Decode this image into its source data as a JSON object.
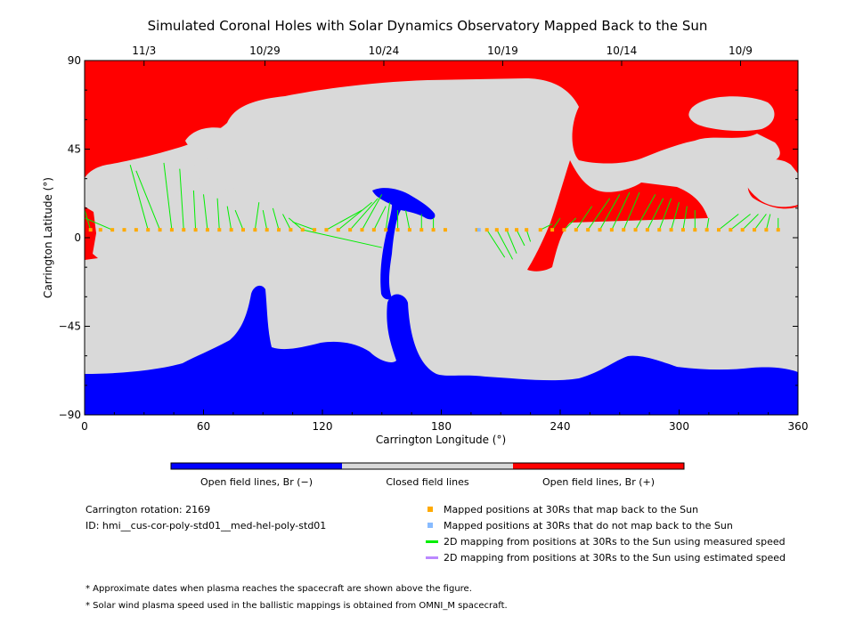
{
  "chart_data": {
    "type": "heatmap",
    "title": "Simulated Coronal Holes with Solar Dynamics Observatory Mapped Back to the Sun",
    "xlabel": "Carrington Longitude (°)",
    "ylabel": "Carrington Latitude (°)",
    "xlim": [
      0,
      360
    ],
    "ylim": [
      -90,
      90
    ],
    "x_ticks": [
      0,
      60,
      120,
      180,
      240,
      300,
      360
    ],
    "y_ticks": [
      -90,
      -45,
      0,
      45,
      90
    ],
    "y_tick_labels": [
      "−90",
      "−45",
      "0",
      "45",
      "90"
    ],
    "date_axis": [
      {
        "label": "11/3",
        "lon": 30
      },
      {
        "label": "10/29",
        "lon": 91
      },
      {
        "label": "10/24",
        "lon": 151
      },
      {
        "label": "10/19",
        "lon": 211
      },
      {
        "label": "10/14",
        "lon": 271
      },
      {
        "label": "10/9",
        "lon": 331
      }
    ],
    "colors": {
      "open_negative": "#0000ff",
      "closed": "#d9d9d9",
      "open_positive": "#ff0000",
      "mapped": "#ffaa00",
      "not_mapped": "#88bbff",
      "measured_line": "#00ee00",
      "estimated_line": "#bb88ff"
    },
    "colorbar_labels": [
      "Open field lines, Br (−)",
      "Closed field lines",
      "Open field lines, Br (+)"
    ],
    "mapped_positions": [
      [
        3,
        4
      ],
      [
        8,
        4
      ],
      [
        14,
        4
      ],
      [
        20,
        4
      ],
      [
        26,
        4
      ],
      [
        32,
        4
      ],
      [
        38,
        4
      ],
      [
        44,
        4
      ],
      [
        50,
        4
      ],
      [
        56,
        4
      ],
      [
        62,
        4
      ],
      [
        68,
        4
      ],
      [
        74,
        4
      ],
      [
        80,
        4
      ],
      [
        86,
        4
      ],
      [
        92,
        4
      ],
      [
        98,
        4
      ],
      [
        104,
        4
      ],
      [
        110,
        4
      ],
      [
        116,
        4
      ],
      [
        122,
        4
      ],
      [
        128,
        4
      ],
      [
        134,
        4
      ],
      [
        140,
        4
      ],
      [
        146,
        4
      ],
      [
        152,
        4
      ],
      [
        158,
        4
      ],
      [
        164,
        4
      ],
      [
        170,
        4
      ],
      [
        176,
        4
      ],
      [
        182,
        4
      ],
      [
        198,
        4
      ],
      [
        203,
        4
      ],
      [
        208,
        4
      ],
      [
        213,
        4
      ],
      [
        218,
        4
      ],
      [
        223,
        4
      ],
      [
        230,
        4
      ],
      [
        236,
        4
      ],
      [
        242,
        4
      ],
      [
        248,
        4
      ],
      [
        254,
        4
      ],
      [
        260,
        4
      ],
      [
        266,
        4
      ],
      [
        272,
        4
      ],
      [
        278,
        4
      ],
      [
        284,
        4
      ],
      [
        290,
        4
      ],
      [
        296,
        4
      ],
      [
        302,
        4
      ],
      [
        308,
        4
      ],
      [
        314,
        4
      ],
      [
        320,
        4
      ],
      [
        326,
        4
      ],
      [
        332,
        4
      ],
      [
        338,
        4
      ],
      [
        344,
        4
      ],
      [
        350,
        4
      ]
    ],
    "not_mapped_positions": [
      [
        199,
        4
      ]
    ],
    "mapping_lines": [
      [
        [
          0,
          14
        ],
        [
          3,
          4
        ]
      ],
      [
        [
          0,
          10
        ],
        [
          14,
          4
        ]
      ],
      [
        [
          23,
          37
        ],
        [
          32,
          4
        ]
      ],
      [
        [
          26,
          34
        ],
        [
          38,
          4
        ]
      ],
      [
        [
          40,
          38
        ],
        [
          44,
          4
        ]
      ],
      [
        [
          48,
          35
        ],
        [
          50,
          4
        ]
      ],
      [
        [
          55,
          24
        ],
        [
          56,
          4
        ]
      ],
      [
        [
          60,
          22
        ],
        [
          62,
          4
        ]
      ],
      [
        [
          67,
          20
        ],
        [
          68,
          4
        ]
      ],
      [
        [
          72,
          16
        ],
        [
          74,
          4
        ]
      ],
      [
        [
          76,
          14
        ],
        [
          80,
          4
        ]
      ],
      [
        [
          88,
          18
        ],
        [
          86,
          4
        ]
      ],
      [
        [
          90,
          14
        ],
        [
          92,
          4
        ]
      ],
      [
        [
          95,
          15
        ],
        [
          98,
          4
        ]
      ],
      [
        [
          100,
          12
        ],
        [
          104,
          4
        ]
      ],
      [
        [
          103,
          10
        ],
        [
          110,
          4
        ]
      ],
      [
        [
          105,
          8
        ],
        [
          116,
          4
        ]
      ],
      [
        [
          110,
          4
        ],
        [
          150,
          -5
        ]
      ],
      [
        [
          140,
          14
        ],
        [
          122,
          4
        ]
      ],
      [
        [
          145,
          18
        ],
        [
          128,
          4
        ]
      ],
      [
        [
          148,
          20
        ],
        [
          134,
          4
        ]
      ],
      [
        [
          150,
          22
        ],
        [
          140,
          4
        ]
      ],
      [
        [
          152,
          16
        ],
        [
          146,
          4
        ]
      ],
      [
        [
          154,
          18
        ],
        [
          152,
          4
        ]
      ],
      [
        [
          158,
          14
        ],
        [
          158,
          4
        ]
      ],
      [
        [
          162,
          14
        ],
        [
          164,
          4
        ]
      ],
      [
        [
          170,
          12
        ],
        [
          170,
          4
        ]
      ],
      [
        [
          176,
          10
        ],
        [
          176,
          4
        ]
      ],
      [
        [
          212,
          -10
        ],
        [
          203,
          4
        ]
      ],
      [
        [
          216,
          -11
        ],
        [
          208,
          4
        ]
      ],
      [
        [
          218,
          -8
        ],
        [
          213,
          4
        ]
      ],
      [
        [
          222,
          -4
        ],
        [
          218,
          4
        ]
      ],
      [
        [
          225,
          -2
        ],
        [
          223,
          4
        ]
      ],
      [
        [
          236,
          7
        ],
        [
          230,
          4
        ]
      ],
      [
        [
          240,
          10
        ],
        [
          236,
          4
        ]
      ],
      [
        [
          248,
          10
        ],
        [
          242,
          4
        ]
      ],
      [
        [
          256,
          16
        ],
        [
          248,
          4
        ]
      ],
      [
        [
          265,
          20
        ],
        [
          254,
          4
        ]
      ],
      [
        [
          270,
          22
        ],
        [
          260,
          4
        ]
      ],
      [
        [
          275,
          23
        ],
        [
          266,
          4
        ]
      ],
      [
        [
          280,
          23
        ],
        [
          272,
          4
        ]
      ],
      [
        [
          288,
          22
        ],
        [
          278,
          4
        ]
      ],
      [
        [
          292,
          20
        ],
        [
          284,
          4
        ]
      ],
      [
        [
          296,
          20
        ],
        [
          290,
          4
        ]
      ],
      [
        [
          300,
          18
        ],
        [
          296,
          4
        ]
      ],
      [
        [
          304,
          16
        ],
        [
          302,
          4
        ]
      ],
      [
        [
          308,
          14
        ],
        [
          308,
          4
        ]
      ],
      [
        [
          315,
          10
        ],
        [
          314,
          4
        ]
      ],
      [
        [
          330,
          12
        ],
        [
          320,
          4
        ]
      ],
      [
        [
          336,
          12
        ],
        [
          326,
          4
        ]
      ],
      [
        [
          340,
          12
        ],
        [
          332,
          4
        ]
      ],
      [
        [
          344,
          12
        ],
        [
          338,
          4
        ]
      ],
      [
        [
          346,
          12
        ],
        [
          344,
          4
        ]
      ],
      [
        [
          350,
          10
        ],
        [
          350,
          4
        ]
      ]
    ]
  },
  "info": {
    "rotation": "Carrington rotation: 2169",
    "id": "ID: hmi__cus-cor-poly-std01__med-hel-poly-std01"
  },
  "legend": [
    {
      "text": "Mapped positions at 30Rs that map back to the Sun",
      "kind": "square",
      "color": "#ffaa00"
    },
    {
      "text": "Mapped positions at 30Rs that do not map back to the Sun",
      "kind": "square",
      "color": "#88bbff"
    },
    {
      "text": "2D mapping from positions at 30Rs to the Sun using measured speed",
      "kind": "line",
      "color": "#00ee00"
    },
    {
      "text": "2D mapping from positions at 30Rs to the Sun using estimated speed",
      "kind": "line",
      "color": "#bb88ff"
    }
  ],
  "notes": [
    "* Approximate dates when plasma reaches the spacecraft are shown above the figure.",
    "* Solar wind plasma speed used in the ballistic mappings is obtained from OMNI_M spacecraft."
  ]
}
